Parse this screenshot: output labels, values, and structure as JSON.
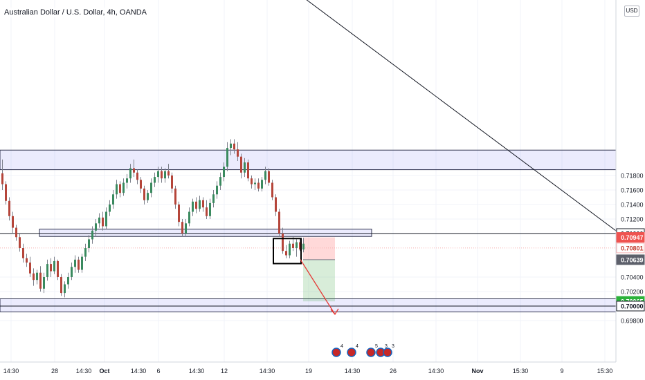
{
  "header": {
    "title": "Australian Dollar / U.S. Dollar, 4h, OANDA"
  },
  "currency_button": "USD",
  "chart_data": {
    "type": "candlestick",
    "instrument": "Australian Dollar / U.S. Dollar",
    "interval": "4h",
    "source": "OANDA",
    "y_axis": {
      "range": [
        0.6966,
        0.723
      ],
      "tick_labels": [
        "0.71800",
        "0.71600",
        "0.71400",
        "0.71200",
        "0.71000",
        "0.70400",
        "0.70200",
        "0.70000",
        "0.69800"
      ],
      "tick_values": [
        0.718,
        0.716,
        0.714,
        0.712,
        0.71,
        0.704,
        0.702,
        0.7,
        0.698
      ]
    },
    "x_axis": {
      "tick_labels": [
        "14:30",
        "28",
        "14:30",
        "Oct",
        "14:30",
        "6",
        "14:30",
        "12",
        "14:30",
        "19",
        "14:30",
        "26",
        "14:30",
        "Nov",
        "15:30",
        "9",
        "15:30"
      ]
    },
    "price_badges": [
      {
        "label": "0.71000",
        "value": 0.71,
        "style": "white"
      },
      {
        "label": "0.70947",
        "value": 0.70947,
        "style": "red"
      },
      {
        "label": "0.70801",
        "value": 0.70801,
        "style": "outline"
      },
      {
        "label": "0.70639",
        "value": 0.70639,
        "style": "gray"
      },
      {
        "label": "0.70065",
        "value": 0.70065,
        "style": "green"
      },
      {
        "label": "0.70000",
        "value": 0.7,
        "style": "white"
      }
    ],
    "zones": [
      {
        "from": 0.7188,
        "to": 0.7215
      },
      {
        "from": 0.7096,
        "to": 0.7106
      },
      {
        "from": 0.6992,
        "to": 0.701
      }
    ],
    "horizontal_lines": [
      0.71,
      0.7
    ],
    "candles": [
      [
        0.7183,
        0.7202,
        0.716,
        0.7168
      ],
      [
        0.7168,
        0.7172,
        0.714,
        0.7145
      ],
      [
        0.7145,
        0.715,
        0.7118,
        0.7124
      ],
      [
        0.7124,
        0.713,
        0.71,
        0.7108
      ],
      [
        0.7108,
        0.7112,
        0.709,
        0.7095
      ],
      [
        0.7095,
        0.7101,
        0.7075,
        0.708
      ],
      [
        0.708,
        0.7086,
        0.706,
        0.7066
      ],
      [
        0.7066,
        0.7072,
        0.7054,
        0.706
      ],
      [
        0.706,
        0.7068,
        0.704,
        0.7045
      ],
      [
        0.7045,
        0.7052,
        0.7028,
        0.7036
      ],
      [
        0.7036,
        0.705,
        0.703,
        0.7046
      ],
      [
        0.7046,
        0.7055,
        0.702,
        0.7024
      ],
      [
        0.7024,
        0.7046,
        0.7018,
        0.704
      ],
      [
        0.704,
        0.7064,
        0.7035,
        0.7058
      ],
      [
        0.7058,
        0.7066,
        0.704,
        0.7048
      ],
      [
        0.7048,
        0.7068,
        0.7044,
        0.7062
      ],
      [
        0.7062,
        0.7064,
        0.7036,
        0.704
      ],
      [
        0.704,
        0.7044,
        0.7014,
        0.7018
      ],
      [
        0.7018,
        0.7034,
        0.7012,
        0.703
      ],
      [
        0.703,
        0.7046,
        0.7024,
        0.704
      ],
      [
        0.704,
        0.706,
        0.7036,
        0.7054
      ],
      [
        0.7054,
        0.707,
        0.7046,
        0.7064
      ],
      [
        0.7064,
        0.7068,
        0.7046,
        0.705
      ],
      [
        0.705,
        0.7072,
        0.7046,
        0.7068
      ],
      [
        0.7068,
        0.7086,
        0.7062,
        0.708
      ],
      [
        0.708,
        0.7098,
        0.7074,
        0.7092
      ],
      [
        0.7092,
        0.711,
        0.7086,
        0.7104
      ],
      [
        0.7104,
        0.712,
        0.7096,
        0.7114
      ],
      [
        0.7114,
        0.7128,
        0.7108,
        0.7122
      ],
      [
        0.7122,
        0.713,
        0.7104,
        0.711
      ],
      [
        0.711,
        0.7136,
        0.7106,
        0.713
      ],
      [
        0.713,
        0.7146,
        0.7124,
        0.714
      ],
      [
        0.714,
        0.716,
        0.7134,
        0.7154
      ],
      [
        0.7154,
        0.7174,
        0.7148,
        0.7168
      ],
      [
        0.7168,
        0.7172,
        0.715,
        0.7156
      ],
      [
        0.7156,
        0.7176,
        0.7152,
        0.717
      ],
      [
        0.717,
        0.7182,
        0.7162,
        0.7176
      ],
      [
        0.7176,
        0.7196,
        0.717,
        0.719
      ],
      [
        0.719,
        0.7202,
        0.7178,
        0.7184
      ],
      [
        0.7184,
        0.7188,
        0.7168,
        0.7174
      ],
      [
        0.7174,
        0.7178,
        0.7156,
        0.7162
      ],
      [
        0.7162,
        0.7166,
        0.714,
        0.7146
      ],
      [
        0.7146,
        0.716,
        0.7142,
        0.7156
      ],
      [
        0.7156,
        0.7176,
        0.715,
        0.717
      ],
      [
        0.717,
        0.7184,
        0.7164,
        0.7178
      ],
      [
        0.7178,
        0.7192,
        0.717,
        0.7186
      ],
      [
        0.7186,
        0.7192,
        0.717,
        0.7176
      ],
      [
        0.7176,
        0.719,
        0.717,
        0.7186
      ],
      [
        0.7186,
        0.7196,
        0.7176,
        0.718
      ],
      [
        0.718,
        0.7184,
        0.7156,
        0.7162
      ],
      [
        0.7162,
        0.7166,
        0.7134,
        0.714
      ],
      [
        0.714,
        0.7144,
        0.711,
        0.7116
      ],
      [
        0.7116,
        0.712,
        0.7096,
        0.71
      ],
      [
        0.71,
        0.712,
        0.7096,
        0.7114
      ],
      [
        0.7114,
        0.7136,
        0.711,
        0.713
      ],
      [
        0.713,
        0.7148,
        0.7124,
        0.7144
      ],
      [
        0.7144,
        0.715,
        0.7128,
        0.7134
      ],
      [
        0.7134,
        0.7152,
        0.713,
        0.7146
      ],
      [
        0.7146,
        0.715,
        0.713,
        0.7136
      ],
      [
        0.7136,
        0.7146,
        0.712,
        0.7124
      ],
      [
        0.7124,
        0.7148,
        0.712,
        0.7142
      ],
      [
        0.7142,
        0.716,
        0.7136,
        0.7154
      ],
      [
        0.7154,
        0.7172,
        0.7148,
        0.7166
      ],
      [
        0.7166,
        0.7184,
        0.716,
        0.7178
      ],
      [
        0.7178,
        0.7198,
        0.7172,
        0.7192
      ],
      [
        0.7192,
        0.7226,
        0.7186,
        0.7218
      ],
      [
        0.7218,
        0.723,
        0.7208,
        0.7224
      ],
      [
        0.7224,
        0.723,
        0.721,
        0.7216
      ],
      [
        0.7216,
        0.7226,
        0.72,
        0.7206
      ],
      [
        0.7206,
        0.721,
        0.7176,
        0.7184
      ],
      [
        0.7184,
        0.7204,
        0.7178,
        0.7198
      ],
      [
        0.7198,
        0.7202,
        0.7172,
        0.7176
      ],
      [
        0.7176,
        0.718,
        0.7162,
        0.7168
      ],
      [
        0.7168,
        0.7176,
        0.716,
        0.717
      ],
      [
        0.717,
        0.7176,
        0.7158,
        0.7162
      ],
      [
        0.7162,
        0.7178,
        0.7158,
        0.7174
      ],
      [
        0.7174,
        0.7192,
        0.7168,
        0.7186
      ],
      [
        0.7186,
        0.719,
        0.7166,
        0.717
      ],
      [
        0.717,
        0.7174,
        0.7146,
        0.715
      ],
      [
        0.715,
        0.7154,
        0.7124,
        0.713
      ],
      [
        0.713,
        0.7134,
        0.7096,
        0.71
      ],
      [
        0.71,
        0.7108,
        0.7072,
        0.7076
      ],
      [
        0.7076,
        0.7084,
        0.7066,
        0.707
      ],
      [
        0.707,
        0.709,
        0.7066,
        0.7086
      ],
      [
        0.7086,
        0.7096,
        0.7076,
        0.708
      ],
      [
        0.708,
        0.7092,
        0.7068,
        0.7088
      ],
      [
        0.7088,
        0.7094,
        0.7076,
        0.7078
      ],
      [
        0.7078,
        0.7094,
        0.7074,
        0.7086
      ]
    ],
    "annotations": {
      "consolidation_box": {
        "from_index": 79,
        "to_index": 86,
        "from": 0.707,
        "to": 0.7095
      },
      "short_position": {
        "entry": 0.70639,
        "stop": 0.70947,
        "target": 0.70065,
        "entry_label": "0.70639",
        "stop_label": "0.70947",
        "target_label": "0.70065"
      },
      "trend_line": {
        "from": [
          64,
          0.7232
        ],
        "to": [
          null,
          0.71
        ]
      },
      "arrow": {
        "from": 0.7068,
        "to": 0.7002
      }
    },
    "event_markers": [
      "4",
      "4",
      "5",
      "3",
      "3"
    ]
  }
}
